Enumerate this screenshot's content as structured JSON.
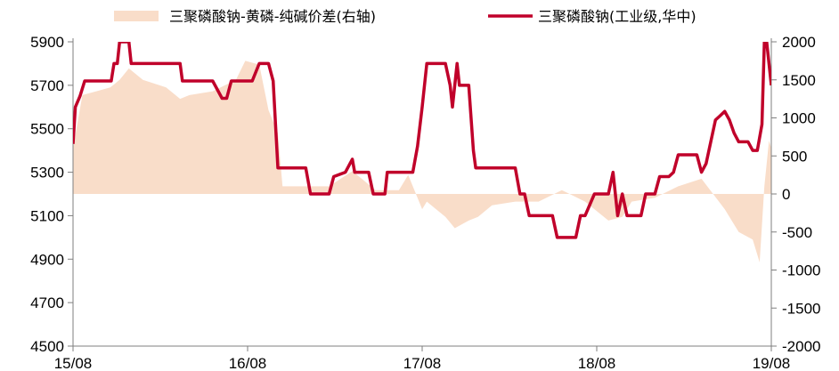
{
  "chart_data": {
    "type": "line",
    "colors": {
      "line": "#c0002a",
      "area": "#f9ddc9",
      "axis": "#7f7f7f"
    },
    "x_tick_labels": [
      "15/08",
      "16/08",
      "17/08",
      "18/08",
      "19/08"
    ],
    "y_left": {
      "min": 4500,
      "max": 5900,
      "ticks": [
        4500,
        4700,
        4900,
        5100,
        5300,
        5500,
        5700,
        5900
      ]
    },
    "y_right": {
      "min": -2000,
      "max": 2000,
      "ticks": [
        -2000,
        -1500,
        -1000,
        -500,
        0,
        500,
        1000,
        1500,
        2000
      ]
    },
    "legend": [
      {
        "label": "三聚磷酸钠-黄磷-纯碱价差(右轴)",
        "kind": "area"
      },
      {
        "label": "三聚磷酸钠(工业级,华中)",
        "kind": "line"
      }
    ],
    "series": [
      {
        "name": "三聚磷酸钠(工业级,华中)",
        "axis": "left",
        "points": [
          [
            0.0,
            5430
          ],
          [
            0.05,
            5600
          ],
          [
            0.15,
            5650
          ],
          [
            0.25,
            5720
          ],
          [
            0.5,
            5720
          ],
          [
            0.82,
            5720
          ],
          [
            0.88,
            5800
          ],
          [
            0.95,
            5800
          ],
          [
            1.0,
            5900
          ],
          [
            1.1,
            5900
          ],
          [
            1.2,
            5900
          ],
          [
            1.25,
            5800
          ],
          [
            1.6,
            5800
          ],
          [
            2.3,
            5800
          ],
          [
            2.35,
            5720
          ],
          [
            3.0,
            5720
          ],
          [
            3.2,
            5640
          ],
          [
            3.3,
            5640
          ],
          [
            3.4,
            5720
          ],
          [
            3.85,
            5720
          ],
          [
            4.0,
            5800
          ],
          [
            4.2,
            5800
          ],
          [
            4.3,
            5720
          ],
          [
            4.4,
            5320
          ],
          [
            4.6,
            5320
          ],
          [
            5.0,
            5320
          ],
          [
            5.1,
            5200
          ],
          [
            5.5,
            5200
          ],
          [
            5.6,
            5280
          ],
          [
            5.85,
            5300
          ],
          [
            6.0,
            5360
          ],
          [
            6.05,
            5300
          ],
          [
            6.35,
            5300
          ],
          [
            6.45,
            5200
          ],
          [
            6.7,
            5200
          ],
          [
            6.75,
            5300
          ],
          [
            7.3,
            5300
          ],
          [
            7.4,
            5420
          ],
          [
            7.5,
            5600
          ],
          [
            7.6,
            5800
          ],
          [
            7.7,
            5800
          ],
          [
            8.0,
            5800
          ],
          [
            8.1,
            5700
          ],
          [
            8.15,
            5600
          ],
          [
            8.25,
            5800
          ],
          [
            8.3,
            5700
          ],
          [
            8.5,
            5700
          ],
          [
            8.6,
            5400
          ],
          [
            8.65,
            5320
          ],
          [
            9.0,
            5320
          ],
          [
            9.3,
            5320
          ],
          [
            9.5,
            5320
          ],
          [
            9.6,
            5200
          ],
          [
            9.7,
            5200
          ],
          [
            9.8,
            5100
          ],
          [
            10.0,
            5100
          ],
          [
            10.3,
            5100
          ],
          [
            10.4,
            5000
          ],
          [
            10.5,
            5000
          ],
          [
            10.8,
            5000
          ],
          [
            10.9,
            5100
          ],
          [
            11.0,
            5100
          ],
          [
            11.2,
            5200
          ],
          [
            11.5,
            5200
          ],
          [
            11.6,
            5300
          ],
          [
            11.7,
            5100
          ],
          [
            11.8,
            5200
          ],
          [
            11.9,
            5100
          ],
          [
            12.0,
            5100
          ],
          [
            12.2,
            5100
          ],
          [
            12.3,
            5200
          ],
          [
            12.5,
            5200
          ],
          [
            12.6,
            5280
          ],
          [
            12.8,
            5280
          ],
          [
            12.9,
            5300
          ],
          [
            13.0,
            5380
          ],
          [
            13.1,
            5380
          ],
          [
            13.4,
            5380
          ],
          [
            13.5,
            5300
          ],
          [
            13.6,
            5340
          ],
          [
            13.8,
            5540
          ],
          [
            13.9,
            5560
          ],
          [
            14.0,
            5580
          ],
          [
            14.1,
            5540
          ],
          [
            14.2,
            5480
          ],
          [
            14.3,
            5440
          ],
          [
            14.5,
            5440
          ],
          [
            14.6,
            5400
          ],
          [
            14.7,
            5400
          ],
          [
            14.8,
            5520
          ],
          [
            14.85,
            5900
          ],
          [
            14.9,
            5900
          ],
          [
            15.0,
            5700
          ]
        ]
      },
      {
        "name": "三聚磷酸钠-黄磷-纯碱价差(右轴)",
        "axis": "right",
        "points": [
          [
            0.0,
            600
          ],
          [
            0.2,
            1300
          ],
          [
            0.5,
            1350
          ],
          [
            0.8,
            1400
          ],
          [
            1.0,
            1500
          ],
          [
            1.2,
            1650
          ],
          [
            1.5,
            1500
          ],
          [
            2.0,
            1400
          ],
          [
            2.3,
            1250
          ],
          [
            2.5,
            1300
          ],
          [
            3.0,
            1350
          ],
          [
            3.5,
            1500
          ],
          [
            3.7,
            1750
          ],
          [
            4.0,
            1700
          ],
          [
            4.2,
            1100
          ],
          [
            4.4,
            800
          ],
          [
            4.5,
            100
          ],
          [
            4.8,
            100
          ],
          [
            5.0,
            100
          ],
          [
            5.5,
            100
          ],
          [
            6.0,
            300
          ],
          [
            6.2,
            200
          ],
          [
            6.5,
            50
          ],
          [
            7.0,
            50
          ],
          [
            7.2,
            250
          ],
          [
            7.5,
            -200
          ],
          [
            7.6,
            -100
          ],
          [
            8.0,
            -300
          ],
          [
            8.2,
            -450
          ],
          [
            8.5,
            -350
          ],
          [
            8.7,
            -300
          ],
          [
            9.0,
            -150
          ],
          [
            9.5,
            -100
          ],
          [
            10.0,
            -100
          ],
          [
            10.5,
            50
          ],
          [
            11.0,
            -100
          ],
          [
            11.5,
            -350
          ],
          [
            11.8,
            -300
          ],
          [
            12.0,
            -100
          ],
          [
            12.5,
            -50
          ],
          [
            13.0,
            100
          ],
          [
            13.5,
            200
          ],
          [
            14.0,
            -200
          ],
          [
            14.3,
            -500
          ],
          [
            14.6,
            -600
          ],
          [
            14.75,
            -900
          ],
          [
            14.85,
            100
          ],
          [
            14.95,
            700
          ],
          [
            15.0,
            600
          ]
        ]
      }
    ]
  }
}
